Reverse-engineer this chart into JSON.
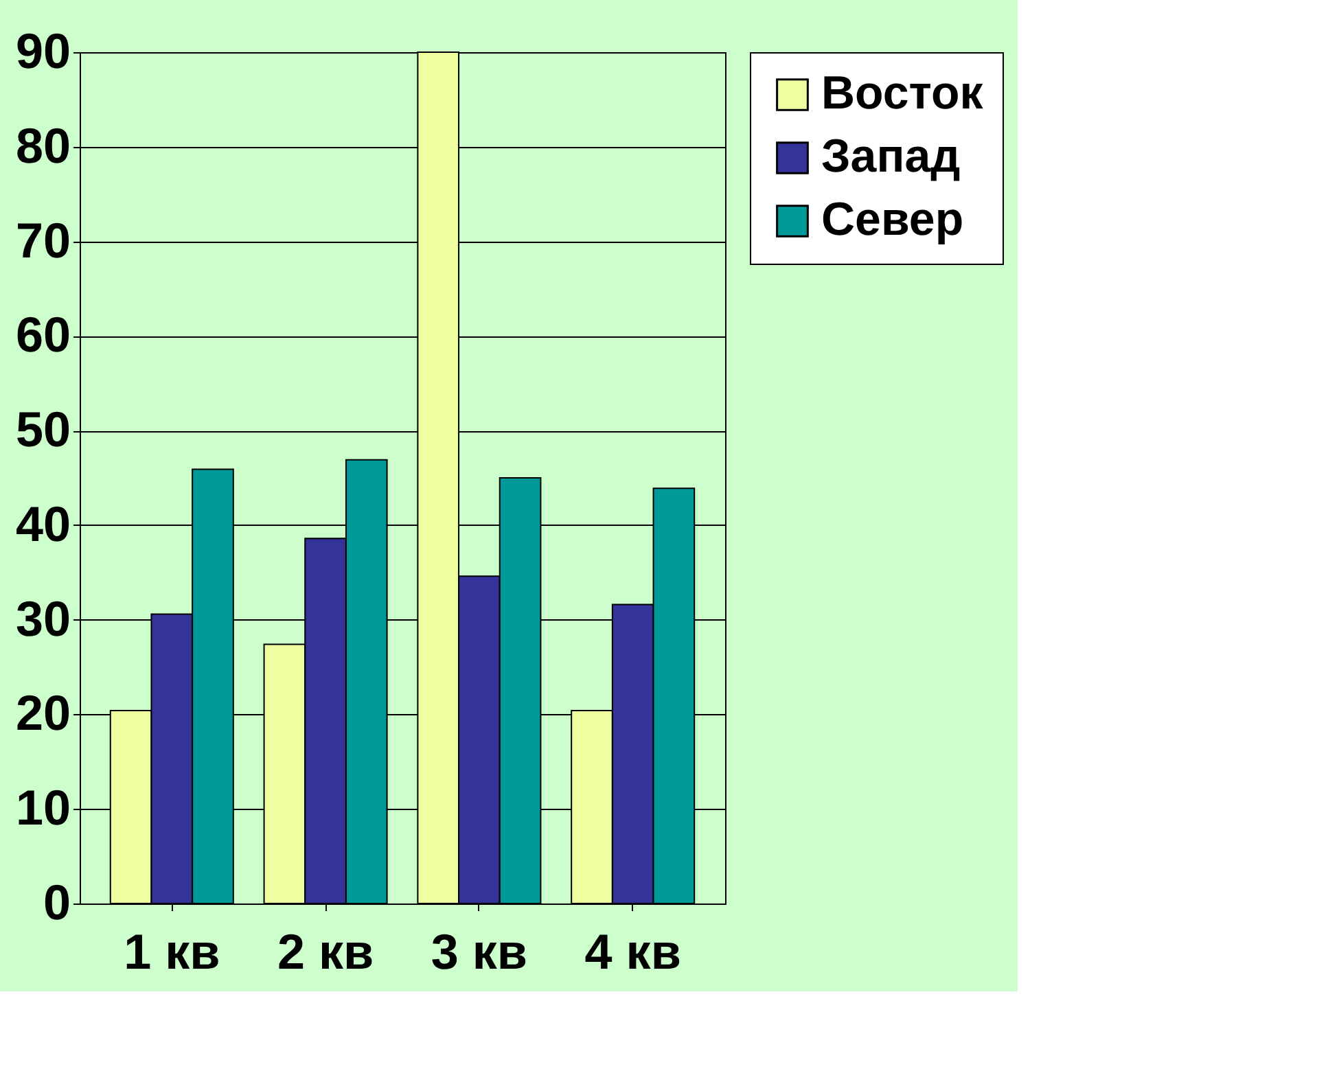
{
  "chart_data": {
    "type": "bar",
    "categories": [
      "1 кв",
      "2 кв",
      "3 кв",
      "4 кв"
    ],
    "series": [
      {
        "name": "Восток",
        "color": "#eeffa0",
        "values": [
          20.4,
          27.4,
          90,
          20.4
        ]
      },
      {
        "name": "Запад",
        "color": "#333399",
        "values": [
          30.6,
          38.6,
          34.6,
          31.6
        ]
      },
      {
        "name": "Север",
        "color": "#009999",
        "values": [
          45.9,
          46.9,
          45,
          43.9
        ]
      }
    ],
    "ylim": [
      0,
      90
    ],
    "yticks": [
      0,
      10,
      20,
      30,
      40,
      50,
      60,
      70,
      80,
      90
    ],
    "grid": "y",
    "legend": "right"
  }
}
